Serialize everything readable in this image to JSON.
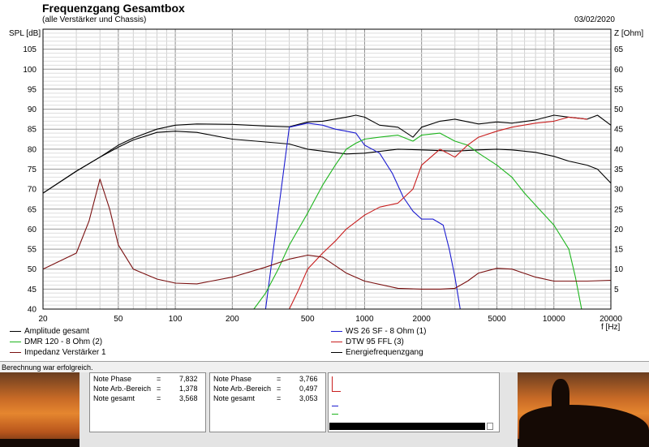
{
  "window": {
    "title": "Frequenzgang Gesamtbox",
    "subtitle": "(alle Verstärker und Chassis)",
    "date": "03/02/2020",
    "y_label_left": "SPL [dB]",
    "y_label_right": "Z [Ohm]",
    "x_label": "f [Hz]"
  },
  "chart_data": {
    "type": "line",
    "x_scale": "log",
    "xlim": [
      20,
      20000
    ],
    "ylim": [
      40,
      110
    ],
    "y2lim": [
      0,
      70
    ],
    "grid": true,
    "x_ticks": [
      20,
      50,
      100,
      200,
      500,
      1000,
      2000,
      5000,
      10000,
      20000
    ],
    "x_tick_labels": [
      "20",
      "50",
      "100",
      "200",
      "500",
      "1000",
      "2000",
      "5000",
      "10000",
      "20000"
    ],
    "y_ticks": [
      40,
      45,
      50,
      55,
      60,
      65,
      70,
      75,
      80,
      85,
      90,
      95,
      100,
      105
    ],
    "y_tick_labels": [
      "40",
      "45",
      "50",
      "55",
      "60",
      "65",
      "70",
      "75",
      "80",
      "85",
      "90",
      "95",
      "100",
      "105"
    ],
    "y2_ticks": [
      5,
      10,
      15,
      20,
      25,
      30,
      35,
      40,
      45,
      50,
      55,
      60,
      65
    ],
    "y2_tick_labels": [
      "5",
      "10",
      "15",
      "20",
      "25",
      "30",
      "35",
      "40",
      "45",
      "50",
      "55",
      "60",
      "65"
    ],
    "series": [
      {
        "name": "Amplitude gesamt",
        "color": "#000000",
        "axis": "left",
        "x": [
          20,
          30,
          40,
          50,
          60,
          80,
          100,
          130,
          200,
          300,
          400,
          500,
          600,
          800,
          900,
          1000,
          1200,
          1500,
          1800,
          2000,
          2500,
          3000,
          4000,
          5000,
          6000,
          8000,
          10000,
          12000,
          15000,
          17000,
          20000
        ],
        "y": [
          69,
          74.5,
          78,
          81,
          82.8,
          85,
          86,
          86.3,
          86.2,
          85.8,
          85.6,
          86.8,
          87,
          88,
          88.5,
          88,
          86,
          85.5,
          83,
          85.5,
          87,
          87.5,
          86.3,
          86.8,
          86.5,
          87.3,
          88.5,
          88,
          87.5,
          88.5,
          86
        ]
      },
      {
        "name": "Energiefrequenzgang",
        "color": "#000000",
        "axis": "left",
        "x": [
          20,
          30,
          40,
          50,
          60,
          80,
          100,
          130,
          200,
          300,
          400,
          500,
          600,
          800,
          1000,
          1500,
          2000,
          3000,
          4000,
          5000,
          6000,
          8000,
          10000,
          12000,
          15000,
          17000,
          20000
        ],
        "y": [
          69,
          74.5,
          78,
          80.5,
          82.3,
          84.2,
          84.5,
          84.2,
          82.5,
          81.8,
          81.3,
          80,
          79.5,
          78.8,
          79,
          80,
          79.8,
          79.5,
          79.8,
          80,
          79.8,
          79.2,
          78.2,
          77,
          76,
          75,
          71.5
        ]
      },
      {
        "name": "WS 26 SF - 8 Ohm  (1)",
        "color": "#1c1cd0",
        "axis": "left",
        "x": [
          20,
          100,
          300,
          400,
          500,
          600,
          700,
          800,
          900,
          1000,
          1200,
          1400,
          1600,
          1800,
          2000,
          2300,
          2600,
          2800,
          3000,
          3200
        ],
        "y": [
          40,
          40,
          40,
          85.5,
          86.5,
          86,
          85,
          84.5,
          84,
          81,
          79,
          74,
          68,
          64.5,
          62.5,
          62.5,
          61,
          55,
          48,
          40
        ]
      },
      {
        "name": "DMR 120 - 8 Ohm (2)",
        "color": "#1eb51e",
        "axis": "left",
        "x": [
          20,
          200,
          260,
          300,
          350,
          400,
          500,
          600,
          700,
          800,
          900,
          1000,
          1200,
          1500,
          1800,
          2000,
          2500,
          3000,
          3500,
          4000,
          5000,
          6000,
          7000,
          8000,
          10000,
          12000,
          13000,
          14000
        ],
        "y": [
          40,
          40,
          40,
          44,
          50,
          56,
          64,
          71,
          76,
          80,
          81.5,
          82.5,
          83,
          83.5,
          82,
          83.5,
          84,
          82,
          81,
          79,
          76,
          73,
          69,
          66,
          61,
          55,
          48,
          40
        ]
      },
      {
        "name": "DTW 95 FFL (3)",
        "color": "#c81e1e",
        "axis": "left",
        "x": [
          20,
          300,
          400,
          450,
          500,
          600,
          700,
          800,
          1000,
          1200,
          1500,
          1800,
          2000,
          2500,
          3000,
          3500,
          4000,
          5000,
          6000,
          8000,
          10000,
          12000,
          15000
        ],
        "y": [
          40,
          40,
          40,
          45,
          50,
          54,
          57,
          60,
          63.5,
          65.5,
          66.5,
          70,
          76,
          80,
          78,
          81,
          83,
          84.5,
          85.5,
          86.5,
          87,
          88,
          87.5
        ]
      },
      {
        "name": "Impedanz Verstärker 1",
        "color": "#7a1010",
        "axis": "right",
        "x": [
          20,
          30,
          35,
          40,
          45,
          50,
          60,
          80,
          100,
          130,
          200,
          300,
          400,
          500,
          600,
          800,
          1000,
          1500,
          2000,
          2500,
          3000,
          3500,
          4000,
          5000,
          6000,
          8000,
          10000,
          15000,
          20000
        ],
        "y": [
          10,
          14,
          22,
          32.5,
          25,
          16,
          10,
          7.5,
          6.5,
          6.3,
          8,
          10.5,
          12.5,
          13.5,
          13,
          9,
          7,
          5.2,
          5,
          5,
          5.2,
          7,
          9,
          10.2,
          10,
          8,
          7,
          7,
          7.2
        ]
      }
    ]
  },
  "legend": {
    "items": [
      {
        "label": "Amplitude gesamt",
        "color": "#000000"
      },
      {
        "label": "DMR 120 - 8 Ohm (2)",
        "color": "#1eb51e"
      },
      {
        "label": "Impedanz Verstärker 1",
        "color": "#7a1010"
      },
      {
        "label": "WS 26 SF - 8 Ohm  (1)",
        "color": "#1c1cd0"
      },
      {
        "label": "DTW 95 FFL (3)",
        "color": "#c81e1e"
      },
      {
        "label": "Energiefrequenzgang",
        "color": "#000000"
      }
    ]
  },
  "status_bar": {
    "text": "Berechnung war erfolgreich."
  },
  "notes_left": {
    "phase_label": "Note Phase",
    "phase_value": "7,832",
    "arb_label": "Note Arb.-Bereich",
    "arb_value": "1,378",
    "total_label": "Note gesamt",
    "total_value": "3,568"
  },
  "notes_right": {
    "phase_label": "Note Phase",
    "phase_value": "3,766",
    "arb_label": "Note Arb.-Bereich",
    "arb_value": "0,497",
    "total_label": "Note gesamt",
    "total_value": "3,053"
  },
  "eq": "="
}
